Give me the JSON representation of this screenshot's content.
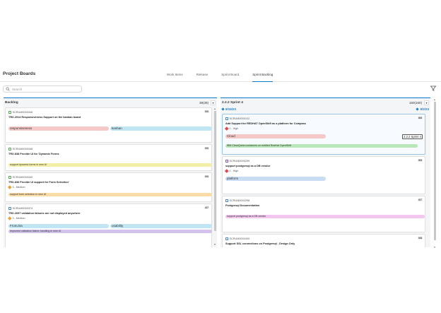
{
  "header": {
    "title": "Project Boards",
    "tabs": [
      "Work Items",
      "Release",
      "Sprint Board",
      "Sprint Backlog"
    ],
    "active_tab": "Sprint Backlog"
  },
  "search": {
    "placeholder": "Search"
  },
  "backlog": {
    "title": "Backlog",
    "count": "39(39)",
    "cards": [
      {
        "id": "SCRUM0000346",
        "points": "0/0",
        "title": "TRX-2914 Responsiveness Support on the kanban board",
        "priority": "",
        "tags": [
          "responsiveness",
          "kanban"
        ]
      },
      {
        "id": "SCRUM0000348",
        "points": "0/0",
        "title": "TRX-838 Provide UI for 'Dynamic Forms",
        "priority": "",
        "tags": [
          "support dynamic forms in new UI"
        ]
      },
      {
        "id": "SCRUM0000349",
        "points": "0/0",
        "title": "TRX-836 Provide UI support for Form Selection'",
        "priority": "3 - Medium",
        "tags": [
          "support form selection in new UI"
        ]
      },
      {
        "id": "SCRUM0000374",
        "points": "4/7",
        "title": "TRX-2697 validation failures are not displayed anywhere",
        "priority": "3 - Medium",
        "tags": [
          "FromJira",
          "usability",
          "improved validation failure handling in new UI"
        ]
      }
    ]
  },
  "sprint": {
    "title": "2.2.2 Sprint 4",
    "count": "160(160)",
    "start_date": "9/15/23",
    "end_date": "9/2/23",
    "cards": [
      {
        "id": "SCRUM0000102",
        "points": "8/8",
        "title": "Add Support for REDHAT OpenShift as a platform for Compass",
        "priority": "1 - High",
        "tags": [
          "Cloud",
          "IBM ClearQuest containers on entitled RedHat OpenShift"
        ],
        "sprint_badge": "2.2.2 Sprint 4"
      },
      {
        "id": "SCRUM0000299",
        "points": "9/9",
        "title": "support postgresql as a DB vendor",
        "priority": "1 - High",
        "tags": [
          "platform"
        ]
      },
      {
        "id": "SCRUM0002298",
        "points": "0/7",
        "title": "Postgresql Documentation",
        "priority": "",
        "tags": [
          "support postgresql as a DB vendor"
        ]
      },
      {
        "id": "SCRUM0002400",
        "points": "0/8",
        "title": "Support SSL connections on Postgresql - Design Only",
        "priority": "",
        "tags": []
      }
    ]
  },
  "colors": {
    "accent": "#0a78c8",
    "tag_red": "#f6c9c9",
    "tag_cyan": "#bfe6f2",
    "tag_yellow": "#f4efa8",
    "tag_orange": "#fbdca6",
    "tag_green": "#b9e7b9",
    "tag_purple": "#d2c2ec",
    "tag_pink": "#f2c6ee",
    "tag_blue": "#c8dcf4"
  }
}
